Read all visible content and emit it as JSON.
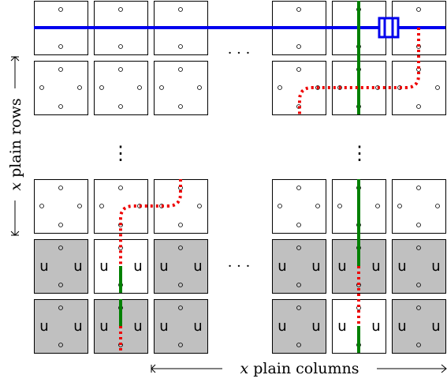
{
  "row_axis_label": {
    "variable": "x",
    "text": " plain rows"
  },
  "column_axis_label": {
    "variable": "x",
    "text": " plain columns"
  },
  "ellipsis_horizontal": "· · ·",
  "ellipsis_vertical": "⋮",
  "tile_letter": "u",
  "colors": {
    "tile_fill_plain": "#ffffff",
    "tile_fill_gray": "#c0c0c0",
    "tile_border": "#000000",
    "blue_line": "#0000ee",
    "green_line": "#008000",
    "red_dotted": "#ee0000"
  }
}
